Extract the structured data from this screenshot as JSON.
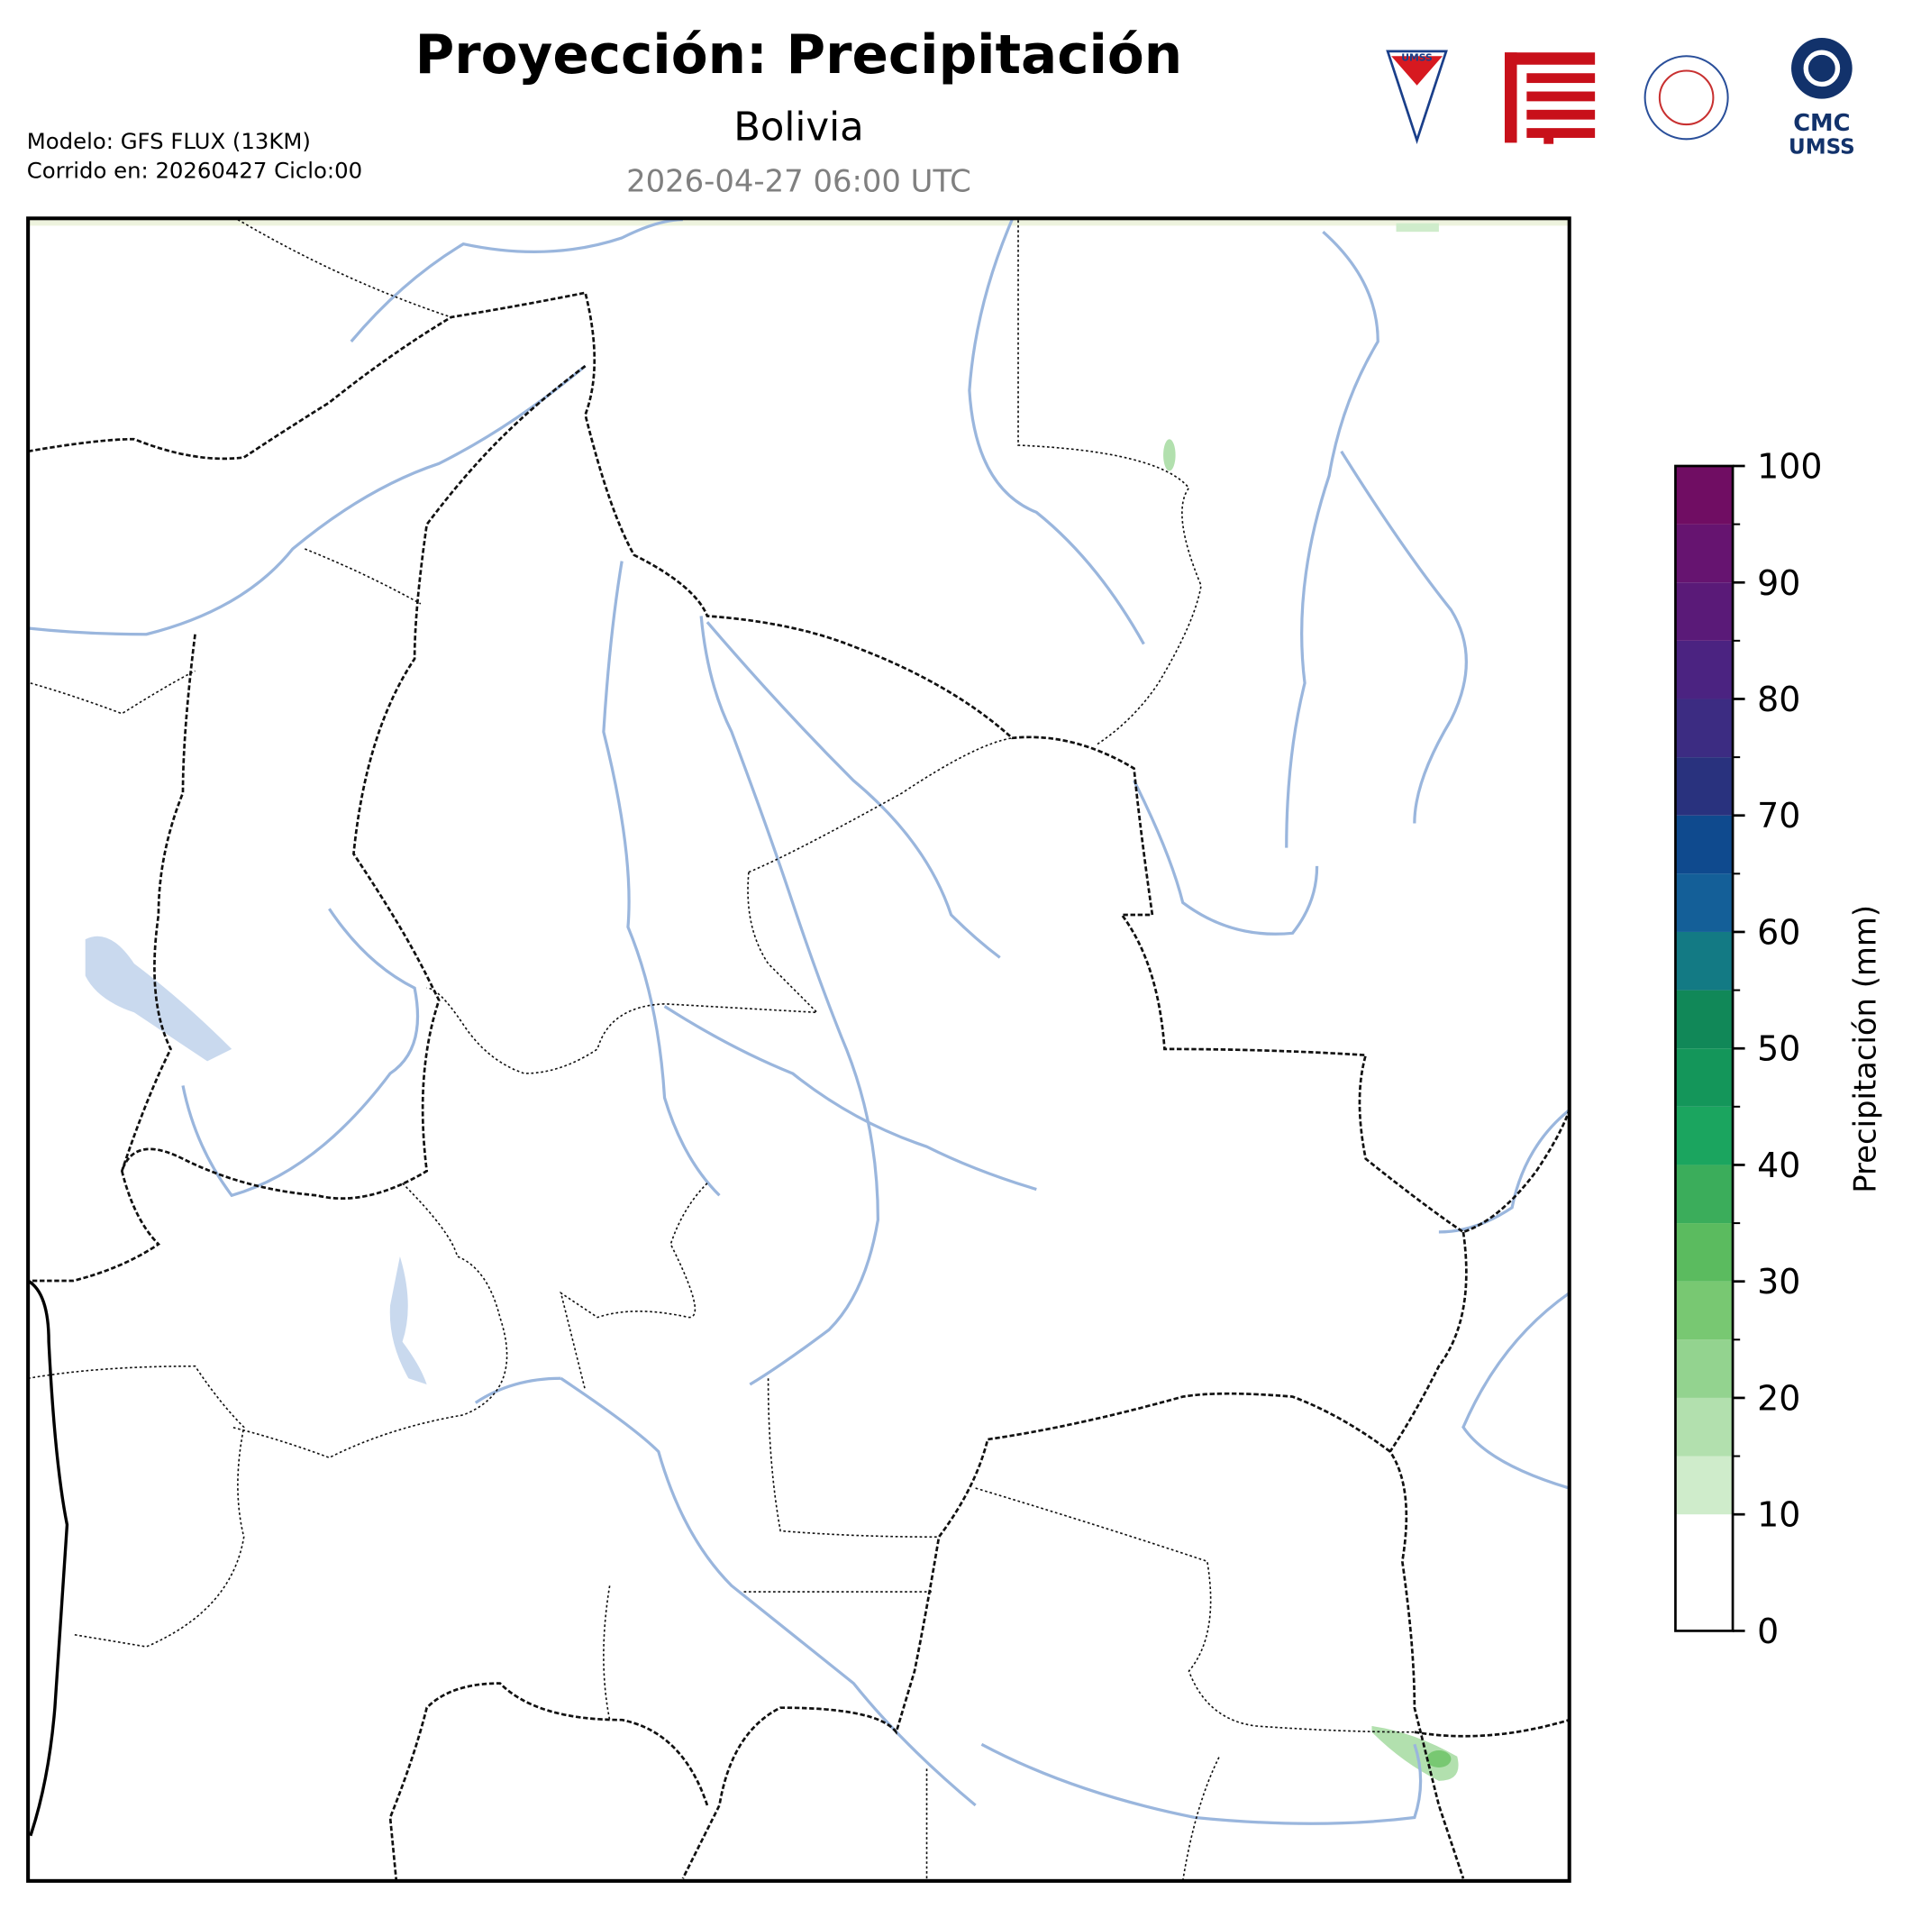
{
  "header": {
    "title": "Proyección: Precipitación",
    "subtitle": "Bolivia",
    "valid_time": "2026-04-27 06:00 UTC",
    "model": "Modelo: GFS FLUX (13KM)",
    "run": "Corrido en: 20260427 Ciclo:00"
  },
  "logos": {
    "umss_shield": "UMSS",
    "cmc": "CMC",
    "cmc_sub": "UMSS"
  },
  "colorbar": {
    "label": "Precipitación (mm)",
    "lim": [
      0,
      100
    ],
    "ticks": [
      0,
      10,
      20,
      30,
      40,
      50,
      60,
      70,
      80,
      90,
      100
    ],
    "levels": [
      0,
      10,
      15,
      20,
      25,
      30,
      35,
      40,
      45,
      50,
      55,
      60,
      65,
      70,
      75,
      80,
      85,
      90,
      95,
      100
    ],
    "colors": [
      "#ffffff",
      "#cfeccb",
      "#b2e0ae",
      "#93d38f",
      "#78c872",
      "#5bbb5f",
      "#3bad5b",
      "#1ba55f",
      "#14965a",
      "#118858",
      "#137a84",
      "#145f98",
      "#0f4a8e",
      "#29327e",
      "#3c2c82",
      "#4b2381",
      "#5a1a78",
      "#661470",
      "#700d63"
    ]
  }
}
